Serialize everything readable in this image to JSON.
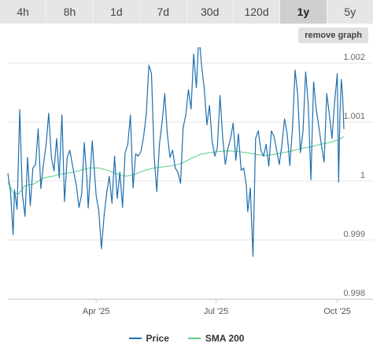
{
  "tabs": [
    {
      "label": "4h"
    },
    {
      "label": "8h"
    },
    {
      "label": "1d"
    },
    {
      "label": "7d"
    },
    {
      "label": "30d"
    },
    {
      "label": "120d"
    },
    {
      "label": "1y",
      "active": true
    },
    {
      "label": "5y"
    }
  ],
  "remove_graph_label": "remove graph",
  "colors": {
    "price": "#1f6fae",
    "sma": "#5cd08a",
    "grid": "#e6e6e6"
  },
  "chart_data": {
    "type": "line",
    "title": "",
    "xlabel": "",
    "ylabel": "",
    "x_range": [
      "2025-01-24",
      "2025-10-06"
    ],
    "ylim": [
      0.998,
      1.0022
    ],
    "y_ticks": [
      "0.998",
      "0.999",
      "1",
      "1.001",
      "1.002"
    ],
    "x_ticks": [
      {
        "date": "2025-04-01",
        "label": "Apr '25"
      },
      {
        "date": "2025-07-01",
        "label": "Jul '25"
      },
      {
        "date": "2025-10-01",
        "label": "Oct '25"
      }
    ],
    "legend_position": "bottom-center",
    "series": [
      {
        "name": "Price",
        "color": "#1f6fae",
        "points": [
          [
            "2025-01-24",
            1.00013
          ],
          [
            "2025-01-26",
            0.99982
          ],
          [
            "2025-01-28",
            0.99909
          ],
          [
            "2025-01-29",
            0.99985
          ],
          [
            "2025-01-31",
            0.99952
          ],
          [
            "2025-02-02",
            1.00121
          ],
          [
            "2025-02-04",
            0.99978
          ],
          [
            "2025-02-06",
            0.9994
          ],
          [
            "2025-02-08",
            1.0004
          ],
          [
            "2025-02-10",
            0.99958
          ],
          [
            "2025-02-12",
            1.00022
          ],
          [
            "2025-02-14",
            1.00028
          ],
          [
            "2025-02-16",
            1.00088
          ],
          [
            "2025-02-18",
            0.99987
          ],
          [
            "2025-02-20",
            1.00028
          ],
          [
            "2025-02-22",
            1.00062
          ],
          [
            "2025-02-24",
            1.00115
          ],
          [
            "2025-02-26",
            1.0004
          ],
          [
            "2025-02-28",
            1.00017
          ],
          [
            "2025-03-02",
            1.00072
          ],
          [
            "2025-03-04",
            1.00005
          ],
          [
            "2025-03-06",
            1.00112
          ],
          [
            "2025-03-08",
            0.99965
          ],
          [
            "2025-03-10",
            1.0004
          ],
          [
            "2025-03-12",
            1.00052
          ],
          [
            "2025-03-15",
            1.00015
          ],
          [
            "2025-03-17",
            0.99992
          ],
          [
            "2025-03-19",
            0.99955
          ],
          [
            "2025-03-21",
            0.99978
          ],
          [
            "2025-03-23",
            1.00065
          ],
          [
            "2025-03-25",
            1.00002
          ],
          [
            "2025-03-26",
            0.99954
          ],
          [
            "2025-03-29",
            1.00068
          ],
          [
            "2025-04-01",
            0.99975
          ],
          [
            "2025-04-03",
            0.9995
          ],
          [
            "2025-04-05",
            0.99885
          ],
          [
            "2025-04-07",
            0.9994
          ],
          [
            "2025-04-09",
            0.9998
          ],
          [
            "2025-04-11",
            1.00008
          ],
          [
            "2025-04-13",
            0.99962
          ],
          [
            "2025-04-15",
            1.00042
          ],
          [
            "2025-04-17",
            0.9997
          ],
          [
            "2025-04-19",
            1.00015
          ],
          [
            "2025-04-21",
            0.99955
          ],
          [
            "2025-04-23",
            1.00048
          ],
          [
            "2025-04-25",
            1.00062
          ],
          [
            "2025-04-27",
            1.00112
          ],
          [
            "2025-04-29",
            0.99988
          ],
          [
            "2025-05-01",
            1.00046
          ],
          [
            "2025-05-03",
            1.00042
          ],
          [
            "2025-05-05",
            1.0005
          ],
          [
            "2025-05-07",
            1.00075
          ],
          [
            "2025-05-09",
            1.00112
          ],
          [
            "2025-05-11",
            1.00196
          ],
          [
            "2025-05-13",
            1.00182
          ],
          [
            "2025-05-15",
            1.00042
          ],
          [
            "2025-05-17",
            0.99982
          ],
          [
            "2025-05-19",
            1.00062
          ],
          [
            "2025-05-21",
            1.00098
          ],
          [
            "2025-05-23",
            1.00148
          ],
          [
            "2025-05-25",
            1.0008
          ],
          [
            "2025-05-27",
            1.0004
          ],
          [
            "2025-05-29",
            1.00052
          ],
          [
            "2025-05-31",
            1.00022
          ],
          [
            "2025-06-02",
            1.00015
          ],
          [
            "2025-06-04",
            0.99996
          ],
          [
            "2025-06-06",
            1.0009
          ],
          [
            "2025-06-08",
            1.00112
          ],
          [
            "2025-06-10",
            1.00155
          ],
          [
            "2025-06-12",
            1.00122
          ],
          [
            "2025-06-14",
            1.00215
          ],
          [
            "2025-06-16",
            1.00158
          ],
          [
            "2025-06-18",
            1.00248
          ],
          [
            "2025-06-20",
            1.00195
          ],
          [
            "2025-06-22",
            1.00158
          ],
          [
            "2025-06-24",
            1.00095
          ],
          [
            "2025-06-26",
            1.00128
          ],
          [
            "2025-06-28",
            1.00068
          ],
          [
            "2025-06-30",
            1.00042
          ],
          [
            "2025-07-02",
            1.00056
          ],
          [
            "2025-07-04",
            1.00145
          ],
          [
            "2025-07-06",
            1.00075
          ],
          [
            "2025-07-08",
            1.00028
          ],
          [
            "2025-07-10",
            1.00055
          ],
          [
            "2025-07-12",
            1.00072
          ],
          [
            "2025-07-14",
            1.00098
          ],
          [
            "2025-07-16",
            1.00035
          ],
          [
            "2025-07-18",
            1.0008
          ],
          [
            "2025-07-20",
            1.00018
          ],
          [
            "2025-07-22",
            1.00022
          ],
          [
            "2025-07-24",
            0.99992
          ],
          [
            "2025-07-25",
            0.99948
          ],
          [
            "2025-07-27",
            0.99988
          ],
          [
            "2025-07-29",
            0.99872
          ],
          [
            "2025-07-31",
            1.00072
          ],
          [
            "2025-08-02",
            1.00085
          ],
          [
            "2025-08-04",
            1.00052
          ],
          [
            "2025-08-06",
            1.00042
          ],
          [
            "2025-08-08",
            1.00062
          ],
          [
            "2025-08-10",
            1.00025
          ],
          [
            "2025-08-12",
            1.00085
          ],
          [
            "2025-08-14",
            1.00075
          ],
          [
            "2025-08-16",
            1.00052
          ],
          [
            "2025-08-18",
            1.00028
          ],
          [
            "2025-08-20",
            1.00062
          ],
          [
            "2025-08-22",
            1.00105
          ],
          [
            "2025-08-24",
            1.0008
          ],
          [
            "2025-08-26",
            1.00026
          ],
          [
            "2025-08-28",
            1.0009
          ],
          [
            "2025-08-30",
            1.00188
          ],
          [
            "2025-09-01",
            1.00145
          ],
          [
            "2025-09-03",
            1.00048
          ],
          [
            "2025-09-05",
            1.00085
          ],
          [
            "2025-09-07",
            1.00185
          ],
          [
            "2025-09-09",
            1.00128
          ],
          [
            "2025-09-11",
            1.00002
          ],
          [
            "2025-09-13",
            1.00168
          ],
          [
            "2025-09-15",
            1.00122
          ],
          [
            "2025-09-17",
            1.00092
          ],
          [
            "2025-09-19",
            1.0006
          ],
          [
            "2025-09-21",
            1.00032
          ],
          [
            "2025-09-23",
            1.00148
          ],
          [
            "2025-09-25",
            1.00112
          ],
          [
            "2025-09-27",
            1.00072
          ],
          [
            "2025-09-29",
            1.00135
          ],
          [
            "2025-10-01",
            1.00182
          ],
          [
            "2025-10-02",
            0.99998
          ],
          [
            "2025-10-03",
            1.00112
          ],
          [
            "2025-10-04",
            1.00172
          ],
          [
            "2025-10-05",
            1.00148
          ],
          [
            "2025-10-06",
            1.00088
          ]
        ]
      },
      {
        "name": "SMA 200",
        "color": "#5cd08a",
        "points": [
          [
            "2025-01-24",
            0.99998
          ],
          [
            "2025-01-28",
            0.9998
          ],
          [
            "2025-02-01",
            0.99978
          ],
          [
            "2025-02-06",
            0.99992
          ],
          [
            "2025-02-13",
            0.99995
          ],
          [
            "2025-02-20",
            1.00005
          ],
          [
            "2025-02-27",
            1.00008
          ],
          [
            "2025-03-06",
            1.00012
          ],
          [
            "2025-03-13",
            1.00014
          ],
          [
            "2025-03-20",
            1.00018
          ],
          [
            "2025-03-27",
            1.00022
          ],
          [
            "2025-04-03",
            1.00022
          ],
          [
            "2025-04-10",
            1.00018
          ],
          [
            "2025-04-17",
            1.00012
          ],
          [
            "2025-04-24",
            1.00008
          ],
          [
            "2025-05-01",
            1.00012
          ],
          [
            "2025-05-08",
            1.00018
          ],
          [
            "2025-05-15",
            1.00022
          ],
          [
            "2025-05-22",
            1.00024
          ],
          [
            "2025-05-29",
            1.00026
          ],
          [
            "2025-06-05",
            1.0003
          ],
          [
            "2025-06-12",
            1.00038
          ],
          [
            "2025-06-19",
            1.00045
          ],
          [
            "2025-06-26",
            1.00048
          ],
          [
            "2025-07-03",
            1.0005
          ],
          [
            "2025-07-10",
            1.00051
          ],
          [
            "2025-07-17",
            1.0005
          ],
          [
            "2025-07-24",
            1.00048
          ],
          [
            "2025-07-31",
            1.00045
          ],
          [
            "2025-08-07",
            1.00043
          ],
          [
            "2025-08-14",
            1.00045
          ],
          [
            "2025-08-21",
            1.00048
          ],
          [
            "2025-08-28",
            1.00051
          ],
          [
            "2025-09-04",
            1.00055
          ],
          [
            "2025-09-11",
            1.00058
          ],
          [
            "2025-09-18",
            1.00062
          ],
          [
            "2025-09-25",
            1.00065
          ],
          [
            "2025-10-02",
            1.0007
          ],
          [
            "2025-10-06",
            1.00075
          ]
        ]
      }
    ]
  }
}
